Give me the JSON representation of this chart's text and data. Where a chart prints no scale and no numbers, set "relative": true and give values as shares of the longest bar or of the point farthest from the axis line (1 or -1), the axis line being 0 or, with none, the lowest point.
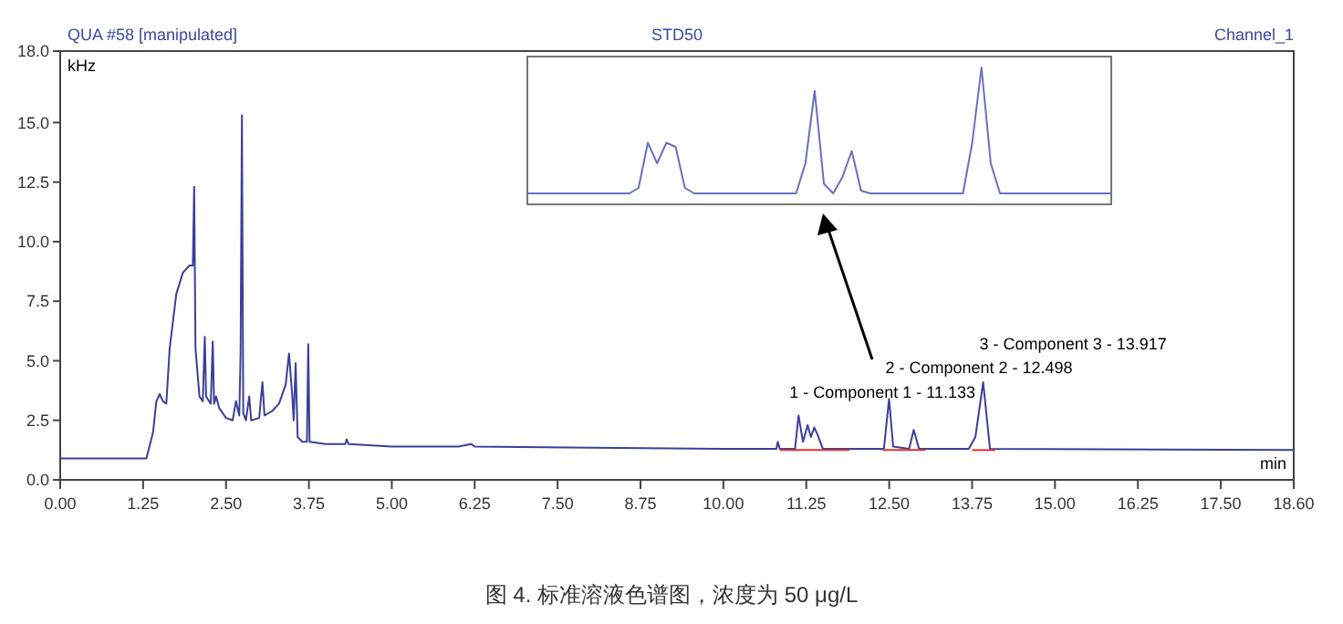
{
  "chart_data": [
    {
      "type": "line",
      "title": "STD50",
      "subtitle": "QUA #58 [manipulated]",
      "ylabel": "kHz",
      "xlabel": "min",
      "grid": false,
      "marker": "none",
      "line_style": "solid",
      "annotations": [
        "Channel_1",
        {
          "text": "1 - Component 1 - 11.133",
          "x": 11.133,
          "y": 2.7
        },
        {
          "text": "2 - Component 2 - 12.498",
          "x": 12.498,
          "y": 3.4
        },
        {
          "text": "3 - Component 3 - 13.917",
          "x": 13.917,
          "y": 4.1
        },
        "图 4. 标准溶液色谱图，浓度为 50 μg/L"
      ],
      "xlim": [
        0,
        18.6
      ],
      "xticks": [
        {
          "value": 0,
          "label": "0.00"
        },
        {
          "value": 1.25,
          "label": "1.25"
        },
        {
          "value": 2.5,
          "label": "2.50"
        },
        {
          "value": 3.75,
          "label": "3.75"
        },
        {
          "value": 5,
          "label": "5.00"
        },
        {
          "value": 6.25,
          "label": "6.25"
        },
        {
          "value": 7.5,
          "label": "7.50"
        },
        {
          "value": 8.75,
          "label": "8.75"
        },
        {
          "value": 10,
          "label": "10.00"
        },
        {
          "value": 11.25,
          "label": "11.25"
        },
        {
          "value": 12.5,
          "label": "12.50"
        },
        {
          "value": 13.75,
          "label": "13.75"
        },
        {
          "value": 15,
          "label": "15.00"
        },
        {
          "value": 16.25,
          "label": "16.25"
        },
        {
          "value": 17.5,
          "label": "17.50"
        },
        {
          "value": 18.6,
          "label": "18.60"
        }
      ],
      "ylim": [
        0,
        18
      ],
      "yticks": [
        {
          "value": 0,
          "label": "0.0"
        },
        {
          "value": 2.5,
          "label": "2.5"
        },
        {
          "value": 5,
          "label": "5.0"
        },
        {
          "value": 7.5,
          "label": "7.5"
        },
        {
          "value": 10,
          "label": "10.0"
        },
        {
          "value": 12.5,
          "label": "12.5"
        },
        {
          "value": 15,
          "label": "15.0"
        },
        {
          "value": 18,
          "label": "18.0"
        }
      ],
      "series": [
        {
          "color": "#3b3f9a",
          "x": [
            0,
            1.3,
            1.4,
            1.45,
            1.5,
            1.55,
            1.6,
            1.65,
            1.75,
            1.85,
            1.95,
            2.0,
            2.02,
            2.04,
            2.1,
            2.15,
            2.18,
            2.2,
            2.27,
            2.3,
            2.32,
            2.35,
            2.4,
            2.5,
            2.6,
            2.65,
            2.7,
            2.72,
            2.74,
            2.76,
            2.8,
            2.85,
            2.88,
            3.0,
            3.05,
            3.08,
            3.2,
            3.3,
            3.4,
            3.45,
            3.5,
            3.52,
            3.55,
            3.58,
            3.65,
            3.72,
            3.74,
            3.76,
            4.0,
            4.3,
            4.32,
            4.35,
            5,
            6,
            6.2,
            6.25,
            8,
            10,
            10.8,
            10.82,
            10.85,
            11.08,
            11.133,
            11.2,
            11.27,
            11.32,
            11.37,
            11.42,
            11.5,
            12.0,
            12.42,
            12.498,
            12.56,
            12.8,
            12.87,
            12.95,
            13.7,
            13.8,
            13.917,
            14.02,
            18.6
          ],
          "values": [
            0.9,
            0.9,
            2.0,
            3.3,
            3.6,
            3.3,
            3.2,
            5.5,
            7.8,
            8.7,
            9.0,
            9.0,
            12.3,
            5.5,
            3.5,
            3.3,
            6.0,
            3.5,
            3.2,
            5.8,
            3.2,
            3.5,
            3.0,
            2.6,
            2.5,
            3.3,
            2.7,
            5.3,
            15.3,
            2.8,
            2.5,
            3.5,
            2.5,
            2.6,
            4.1,
            2.7,
            2.9,
            3.2,
            4.0,
            5.3,
            3.5,
            2.5,
            4.9,
            1.8,
            1.6,
            1.6,
            5.7,
            1.6,
            1.5,
            1.5,
            1.7,
            1.5,
            1.4,
            1.4,
            1.5,
            1.4,
            1.35,
            1.3,
            1.3,
            1.6,
            1.3,
            1.3,
            2.7,
            1.6,
            2.3,
            1.8,
            2.2,
            1.9,
            1.3,
            1.3,
            1.3,
            3.4,
            1.4,
            1.3,
            2.1,
            1.3,
            1.3,
            1.8,
            4.1,
            1.3,
            1.25
          ]
        },
        {
          "color": "#e03030",
          "x": [
            10.85,
            11.9
          ],
          "values": [
            1.25,
            1.25
          ]
        },
        {
          "color": "#e03030",
          "x": [
            12.4,
            13.05
          ],
          "values": [
            1.25,
            1.25
          ]
        },
        {
          "color": "#e03030",
          "x": [
            13.75,
            14.1
          ],
          "values": [
            1.25,
            1.25
          ]
        }
      ]
    },
    {
      "type": "line",
      "relative": true,
      "marker": "none",
      "categories": [
        null,
        null,
        null,
        null,
        null,
        null,
        null,
        null,
        null,
        null,
        null,
        null,
        null,
        null,
        null,
        null,
        null,
        null,
        null,
        null,
        null,
        null,
        null,
        null,
        null,
        null,
        null,
        null,
        null,
        null,
        null,
        null,
        null,
        null,
        null,
        null,
        null,
        null,
        null,
        null,
        null,
        null,
        null,
        null,
        null,
        null,
        null,
        null,
        null,
        null,
        null,
        null,
        null,
        null,
        null,
        null,
        null,
        null,
        null,
        null,
        null,
        null,
        null,
        null
      ],
      "series": [
        {
          "color": "#6a6fc0",
          "values": [
            0.08,
            0.08,
            0.08,
            0.08,
            0.08,
            0.08,
            0.08,
            0.08,
            0.08,
            0.08,
            0.08,
            0.08,
            0.12,
            0.45,
            0.3,
            0.45,
            0.42,
            0.12,
            0.08,
            0.08,
            0.08,
            0.08,
            0.08,
            0.08,
            0.08,
            0.08,
            0.08,
            0.08,
            0.08,
            0.08,
            0.3,
            0.83,
            0.15,
            0.08,
            0.2,
            0.39,
            0.1,
            0.08,
            0.08,
            0.08,
            0.08,
            0.08,
            0.08,
            0.08,
            0.08,
            0.08,
            0.08,
            0.08,
            0.45,
            1,
            0.3,
            0.08,
            0.08,
            0.08,
            0.08,
            0.08,
            0.08,
            0.08,
            0.08,
            0.08,
            0.08,
            0.08,
            0.08,
            0.08
          ]
        }
      ]
    }
  ]
}
